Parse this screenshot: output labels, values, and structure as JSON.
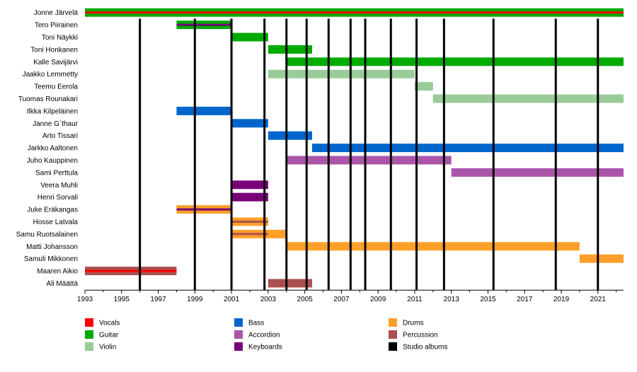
{
  "chart_data": {
    "type": "timeline",
    "xlim": [
      1993,
      2022.4
    ],
    "x_ticks": [
      "1993",
      "1995",
      "1997",
      "1999",
      "2001",
      "2003",
      "2005",
      "2007",
      "2009",
      "2011",
      "2013",
      "2015",
      "2017",
      "2019",
      "2021"
    ],
    "members": [
      {
        "name": "Jonne Järvelä",
        "bars": [
          {
            "start": 1993,
            "end": 2022.4,
            "role": "Guitar"
          }
        ],
        "overlays": [
          {
            "start": 1993,
            "end": 2022.4,
            "role": "Vocals"
          }
        ]
      },
      {
        "name": "Tero Piirainen",
        "bars": [
          {
            "start": 1998,
            "end": 2001,
            "role": "Guitar"
          }
        ],
        "overlays": [
          {
            "start": 1998,
            "end": 2001,
            "role": "Keyboards"
          }
        ]
      },
      {
        "name": "Toni Näykki",
        "bars": [
          {
            "start": 2001,
            "end": 2003,
            "role": "Guitar"
          }
        ],
        "overlays": []
      },
      {
        "name": "Toni Honkanen",
        "bars": [
          {
            "start": 2003,
            "end": 2005.4,
            "role": "Guitar"
          }
        ],
        "overlays": []
      },
      {
        "name": "Kalle Savijärvi",
        "bars": [
          {
            "start": 2004,
            "end": 2022.4,
            "role": "Guitar"
          }
        ],
        "overlays": []
      },
      {
        "name": "Jaakko Lemmetty",
        "bars": [
          {
            "start": 2003,
            "end": 2011,
            "role": "Violin"
          }
        ],
        "overlays": []
      },
      {
        "name": "Teemu Eerola",
        "bars": [
          {
            "start": 2011,
            "end": 2012,
            "role": "Violin"
          }
        ],
        "overlays": []
      },
      {
        "name": "Tuomas Rounakari",
        "bars": [
          {
            "start": 2012,
            "end": 2022.4,
            "role": "Violin"
          }
        ],
        "overlays": []
      },
      {
        "name": "Ilkka Kilpeläinen",
        "bars": [
          {
            "start": 1998,
            "end": 2001,
            "role": "Bass"
          }
        ],
        "overlays": []
      },
      {
        "name": "Janne G`thaur",
        "bars": [
          {
            "start": 2001,
            "end": 2003,
            "role": "Bass"
          }
        ],
        "overlays": []
      },
      {
        "name": "Arto Tissari",
        "bars": [
          {
            "start": 2003,
            "end": 2005.4,
            "role": "Bass"
          }
        ],
        "overlays": []
      },
      {
        "name": "Jarkko Aaltonen",
        "bars": [
          {
            "start": 2005.4,
            "end": 2022.4,
            "role": "Bass"
          }
        ],
        "overlays": []
      },
      {
        "name": "Juho Kauppinen",
        "bars": [
          {
            "start": 2004,
            "end": 2013,
            "role": "Accordion"
          }
        ],
        "overlays": []
      },
      {
        "name": "Sami Perttula",
        "bars": [
          {
            "start": 2013,
            "end": 2022.4,
            "role": "Accordion"
          }
        ],
        "overlays": []
      },
      {
        "name": "Veera Muhli",
        "bars": [
          {
            "start": 2001,
            "end": 2003,
            "role": "Keyboards"
          }
        ],
        "overlays": []
      },
      {
        "name": "Henri Sorvali",
        "bars": [
          {
            "start": 2001,
            "end": 2003,
            "role": "Keyboards"
          }
        ],
        "overlays": []
      },
      {
        "name": "Juke Eräkangas",
        "bars": [
          {
            "start": 1998,
            "end": 2001,
            "role": "Drums"
          }
        ],
        "overlays": [
          {
            "start": 1998,
            "end": 2001,
            "role": "Keyboards"
          }
        ]
      },
      {
        "name": "Hosse Latvala",
        "bars": [
          {
            "start": 2001,
            "end": 2003,
            "role": "Drums"
          }
        ],
        "overlays": [
          {
            "start": 2001,
            "end": 2003,
            "role": "Percussion"
          }
        ]
      },
      {
        "name": "Samu Ruotsalainen",
        "bars": [
          {
            "start": 2001,
            "end": 2004,
            "role": "Drums"
          }
        ],
        "overlays": [
          {
            "start": 2001,
            "end": 2003,
            "role": "Percussion"
          }
        ]
      },
      {
        "name": "Matti Johansson",
        "bars": [
          {
            "start": 2004,
            "end": 2020,
            "role": "Drums"
          }
        ],
        "overlays": []
      },
      {
        "name": "Samuli Mikkonen",
        "bars": [
          {
            "start": 2020,
            "end": 2022.4,
            "role": "Drums"
          }
        ],
        "overlays": []
      },
      {
        "name": "Maaren Aikio",
        "bars": [
          {
            "start": 1993,
            "end": 1998,
            "role": "Percussion"
          }
        ],
        "overlays": [
          {
            "start": 1993,
            "end": 1998,
            "role": "Vocals"
          }
        ]
      },
      {
        "name": "Ali Määttä",
        "bars": [
          {
            "start": 2003,
            "end": 2005.4,
            "role": "Percussion"
          }
        ],
        "overlays": []
      }
    ],
    "studio_albums": [
      1996,
      1999,
      2001,
      2002.8,
      2004,
      2005.1,
      2006.3,
      2007.5,
      2008.3,
      2009.7,
      2011.1,
      2012.6,
      2015.3,
      2018.7,
      2021
    ],
    "legend": [
      {
        "label": "Vocals",
        "color": "#ff0000"
      },
      {
        "label": "Guitar",
        "color": "#00aa00"
      },
      {
        "label": "Violin",
        "color": "#99cc99"
      },
      {
        "label": "Bass",
        "color": "#0066cc"
      },
      {
        "label": "Accordion",
        "color": "#aa55aa"
      },
      {
        "label": "Keyboards",
        "color": "#770077"
      },
      {
        "label": "Drums",
        "color": "#ffa028"
      },
      {
        "label": "Percussion",
        "color": "#aa5050"
      },
      {
        "label": "Studio albums",
        "color": "#000000"
      }
    ]
  }
}
